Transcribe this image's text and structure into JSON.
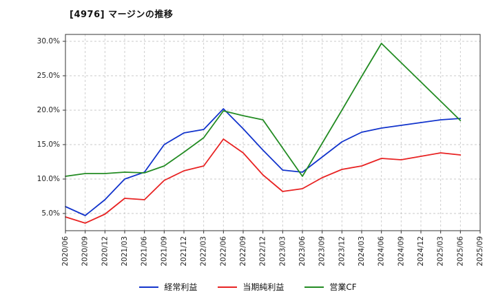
{
  "chart_data": {
    "type": "line",
    "title": "[4976]  マージンの推移",
    "xlabel": "",
    "ylabel": "",
    "ylim": [
      2.5,
      31.0
    ],
    "grid": true,
    "legend_position": "bottom-center",
    "y_ticks": [
      {
        "value": 5,
        "label": "5.0%"
      },
      {
        "value": 10,
        "label": "10.0%"
      },
      {
        "value": 15,
        "label": "15.0%"
      },
      {
        "value": 20,
        "label": "20.0%"
      },
      {
        "value": 25,
        "label": "25.0%"
      },
      {
        "value": 30,
        "label": "30.0%"
      }
    ],
    "categories": [
      "2020/06",
      "2020/09",
      "2020/12",
      "2021/03",
      "2021/06",
      "2021/09",
      "2021/12",
      "2022/03",
      "2022/06",
      "2022/09",
      "2022/12",
      "2023/03",
      "2023/06",
      "2023/09",
      "2023/12",
      "2024/03",
      "2024/06",
      "2024/09",
      "2024/12",
      "2025/03",
      "2025/06",
      "2025/09"
    ],
    "series": [
      {
        "name": "経常利益",
        "color": "#1133cc",
        "values": [
          6.0,
          4.7,
          7.0,
          10.0,
          11.0,
          15.0,
          16.7,
          17.2,
          20.2,
          17.3,
          14.2,
          11.3,
          11.0,
          13.2,
          15.4,
          16.8,
          17.4,
          17.8,
          18.2,
          18.6,
          18.8,
          null
        ]
      },
      {
        "name": "当期純利益",
        "color": "#e82222",
        "values": [
          4.5,
          3.6,
          4.9,
          7.2,
          7.0,
          9.8,
          11.2,
          11.9,
          15.8,
          13.8,
          10.6,
          8.2,
          8.6,
          10.2,
          11.4,
          11.9,
          13.0,
          12.8,
          13.3,
          13.8,
          13.5,
          null
        ]
      },
      {
        "name": "営業CF",
        "color": "#228b22",
        "values": [
          10.4,
          10.8,
          10.8,
          11.0,
          10.9,
          11.9,
          13.9,
          16.0,
          19.9,
          19.2,
          18.6,
          14.5,
          10.4,
          15.2,
          20.0,
          24.9,
          29.7,
          26.9,
          24.1,
          21.3,
          18.5,
          null
        ]
      }
    ],
    "style": {
      "grid_color": "#c8c8c8",
      "axis_color": "#333333",
      "tick_text_color": "#222222",
      "plot_bg": "#ffffff"
    }
  }
}
